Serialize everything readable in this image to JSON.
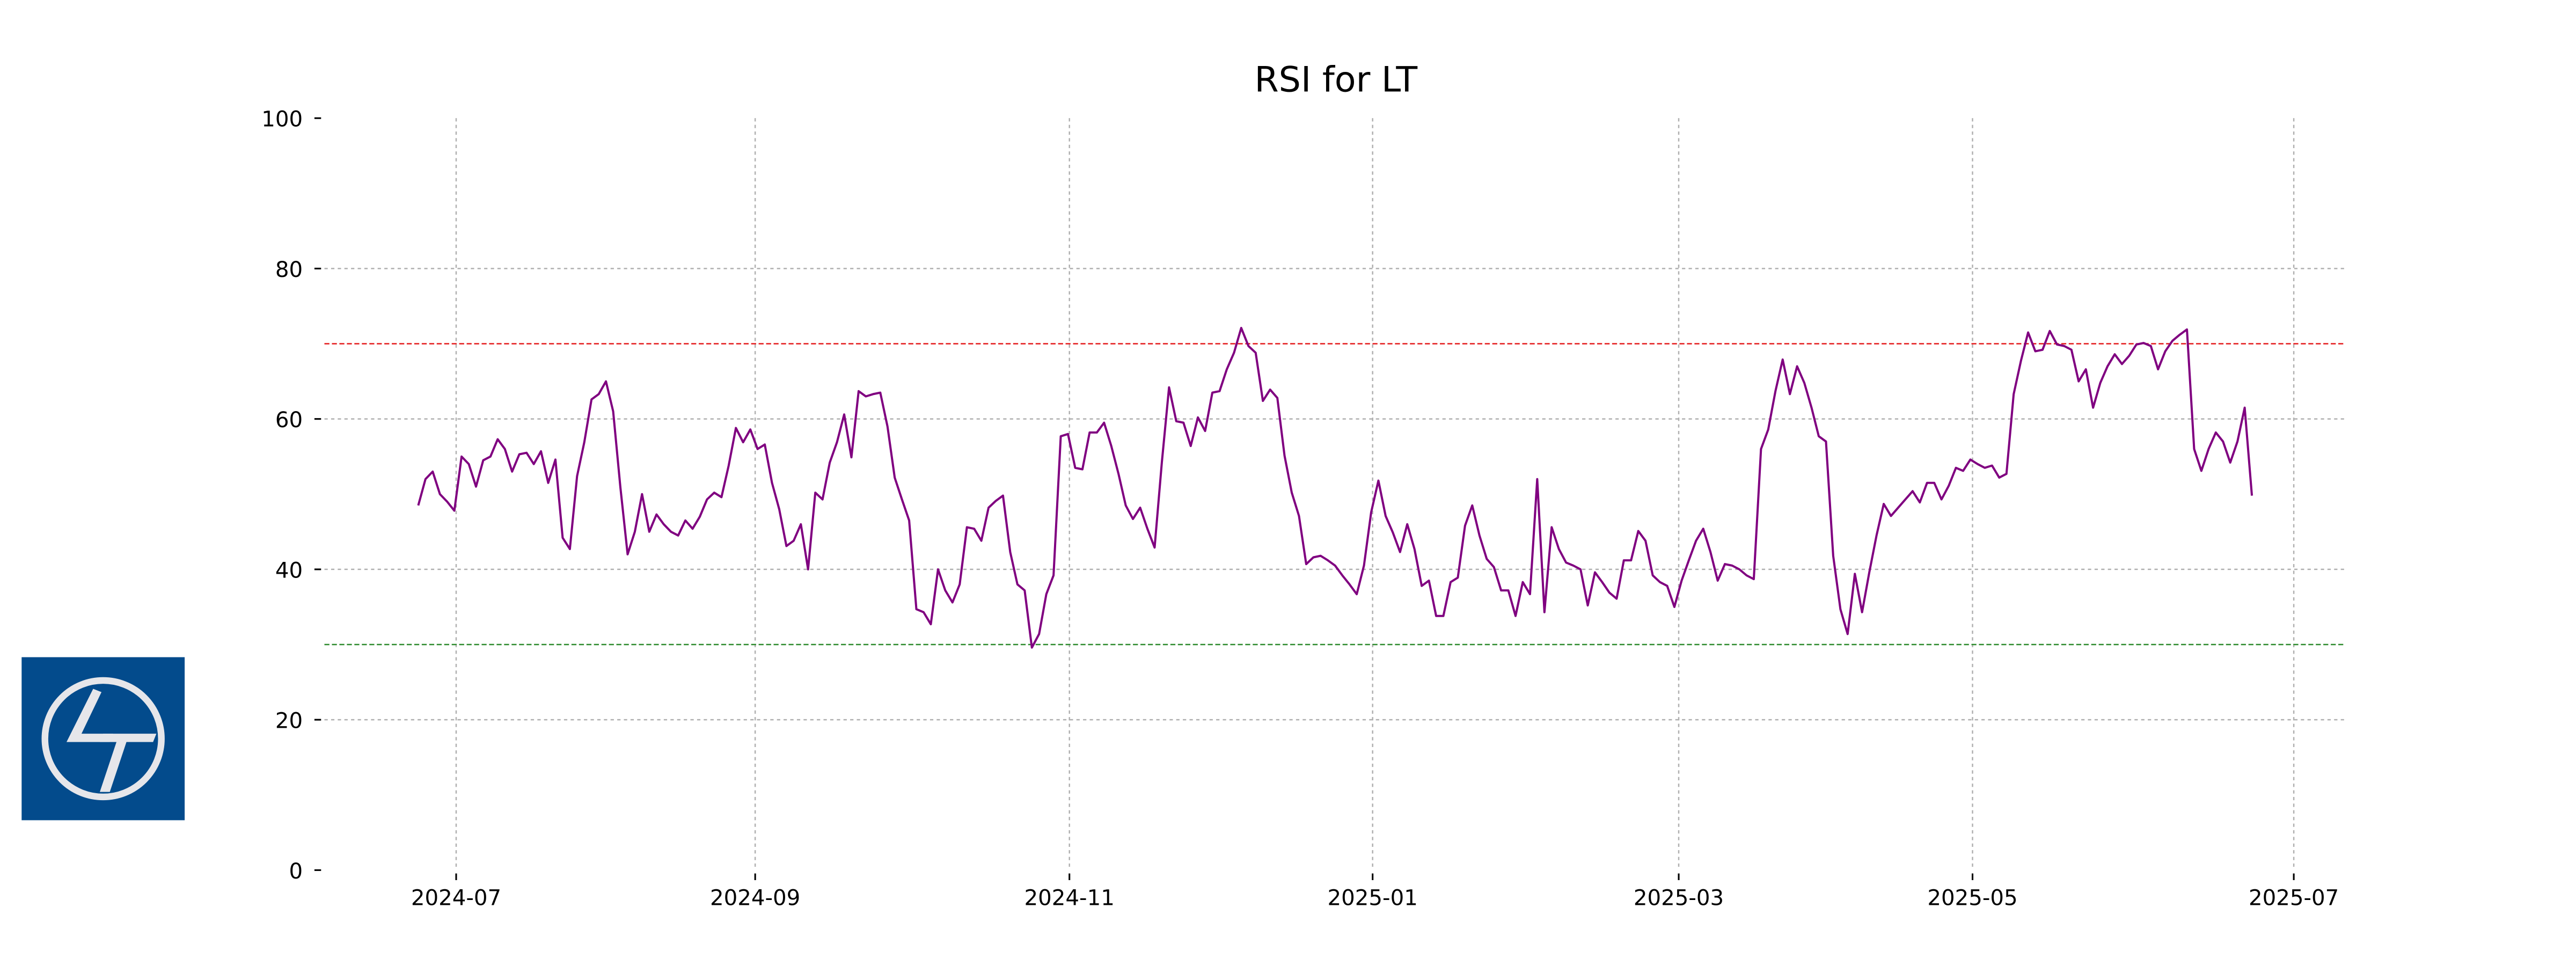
{
  "chart_data": {
    "type": "line",
    "title": "RSI for LT",
    "color": "#800080",
    "values": [
      48.5,
      52,
      53,
      50,
      49,
      47.8,
      55,
      54,
      51,
      54.5,
      55,
      57.3,
      56,
      53,
      55.3,
      55.5,
      54,
      55.7,
      51.5,
      54.6,
      44.2,
      42.7,
      52.4,
      56.9,
      62.6,
      63.3,
      65,
      61,
      50.9,
      42,
      45,
      50,
      45,
      47.3,
      46,
      45,
      44.5,
      46.5,
      45.4,
      47,
      49.3,
      50.2,
      49.6,
      53.8,
      58.8,
      56.9,
      58.6,
      56,
      56.6,
      51.5,
      48,
      43.1,
      43.8,
      46,
      40,
      50.2,
      49.3,
      54.2,
      56.9,
      60.6,
      54.9,
      63.7,
      63,
      63.3,
      63.5,
      59,
      52.2,
      49.3,
      46.5,
      34.7,
      34.3,
      32.7,
      40,
      37.2,
      35.6,
      38,
      45.6,
      45.4,
      43.8,
      48.2,
      49.1,
      49.8,
      42.3,
      38,
      37.2,
      29.6,
      31.4,
      36.7,
      39.2,
      57.7,
      58,
      53.5,
      53.3,
      58.2,
      58.2,
      59.5,
      56.4,
      52.7,
      48.5,
      46.7,
      48.2,
      45.4,
      42.9,
      54.2,
      64.2,
      59.7,
      59.5,
      56.4,
      60.2,
      58.4,
      63.5,
      63.7,
      66.6,
      68.8,
      72.1,
      69.7,
      68.8,
      62.4,
      63.9,
      62.8,
      55.1,
      50.2,
      47.1,
      40.7,
      41.6,
      41.8,
      41.2,
      40.5,
      39.2,
      38,
      36.7,
      40.5,
      47.6,
      51.8,
      47.1,
      44.9,
      42.3,
      46,
      42.7,
      37.8,
      38.5,
      33.8,
      33.8,
      38.3,
      38.9,
      45.8,
      48.5,
      44.5,
      41.4,
      40.3,
      37.2,
      37.2,
      33.8,
      38.3,
      36.7,
      52,
      34.3,
      45.6,
      42.7,
      40.9,
      40.5,
      40,
      35.2,
      39.6,
      38.3,
      36.9,
      36.1,
      41.2,
      41.2,
      45.1,
      43.8,
      39.2,
      38.3,
      37.8,
      35,
      38.5,
      41.2,
      43.8,
      45.4,
      42.3,
      38.5,
      40.7,
      40.5,
      40,
      39.2,
      38.7,
      56,
      58.6,
      63.7,
      67.9,
      63.3,
      67,
      64.8,
      61.5,
      57.7,
      57,
      41.8,
      34.7,
      31.4,
      39.4,
      34.3,
      39.6,
      44.5,
      48.7,
      47.1,
      48.2,
      49.3,
      50.4,
      48.9,
      51.5,
      51.5,
      49.3,
      51.1,
      53.5,
      53.1,
      54.6,
      54,
      53.5,
      53.8,
      52.2,
      52.7,
      63.3,
      67.7,
      71.5,
      69,
      69.2,
      71.7,
      69.9,
      69.7,
      69.2,
      65,
      66.6,
      61.5,
      64.8,
      67,
      68.6,
      67.3,
      68.4,
      69.9,
      70.1,
      69.7,
      66.6,
      69,
      70.4,
      71.2,
      71.9,
      56,
      53.1,
      56,
      58.2,
      57,
      54.2,
      57,
      61.5,
      49.8
    ],
    "xlim": [
      -13,
      267
    ],
    "xticks": [
      {
        "value": 5.25,
        "label": "2024-07"
      },
      {
        "value": 46.67,
        "label": "2024-09"
      },
      {
        "value": 90.2,
        "label": "2024-11"
      },
      {
        "value": 132.2,
        "label": "2025-01"
      },
      {
        "value": 174.6,
        "label": "2025-03"
      },
      {
        "value": 215.3,
        "label": "2025-05"
      },
      {
        "value": 259.8,
        "label": "2025-07"
      }
    ],
    "ylim": [
      0,
      100
    ],
    "yticks": [
      0,
      20,
      40,
      60,
      80,
      100
    ],
    "grid": true,
    "reference_lines": [
      {
        "value": 70,
        "color": "#e41a1c"
      },
      {
        "value": 30,
        "color": "#2e8b2e"
      }
    ]
  }
}
